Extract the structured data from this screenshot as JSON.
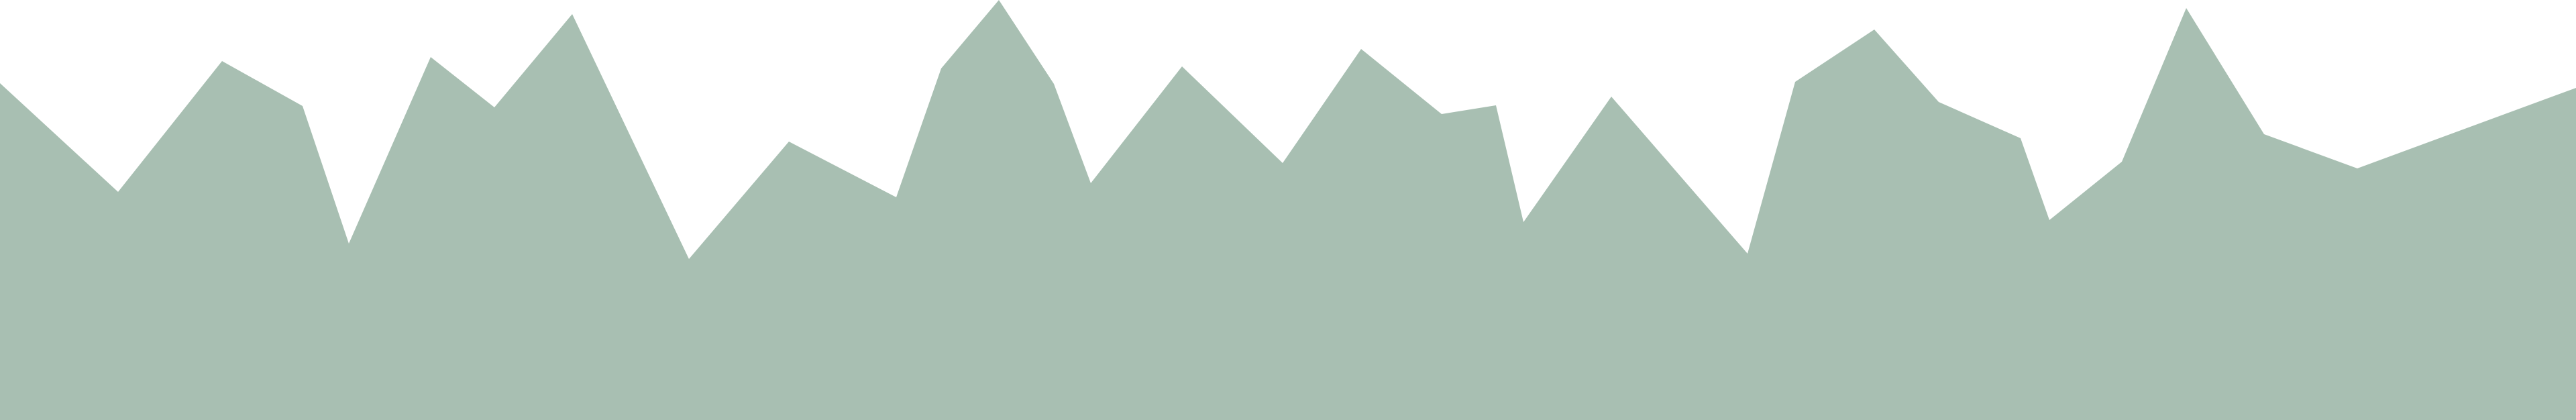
{
  "colors": {
    "background": "#ffffff",
    "fill": "#a8bfb2"
  },
  "shape": "jagged-mountain-silhouette"
}
